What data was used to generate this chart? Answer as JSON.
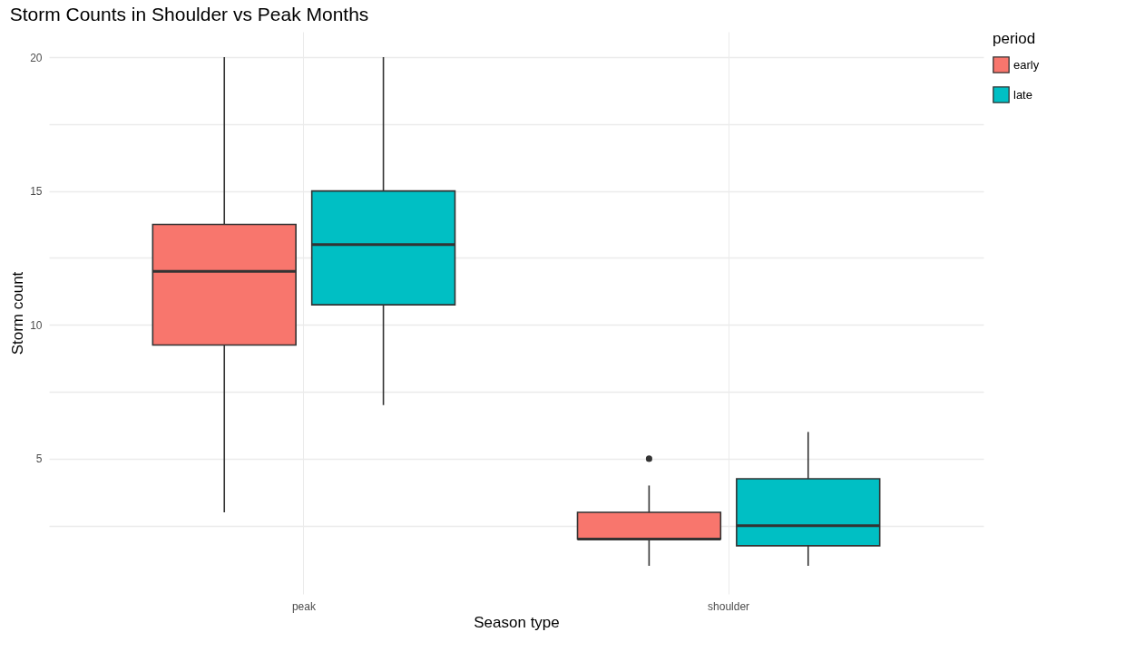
{
  "chart_data": {
    "type": "box",
    "title": "Storm Counts in Shoulder vs Peak Months",
    "xlabel": "Season type",
    "ylabel": "Storm count",
    "legend_title": "period",
    "legend": "right",
    "grid": true,
    "categories": [
      "peak",
      "shoulder"
    ],
    "series": [
      {
        "name": "early",
        "color": "#f8766d",
        "boxes": [
          {
            "low": 3,
            "q1": 9.25,
            "median": 12,
            "q3": 13.75,
            "high": 20
          },
          {
            "low": 1,
            "q1": 2,
            "median": 2,
            "q3": 3,
            "high": 4,
            "outliers": [
              5
            ]
          }
        ]
      },
      {
        "name": "late",
        "color": "#00bfc4",
        "boxes": [
          {
            "low": 7,
            "q1": 10.75,
            "median": 13,
            "q3": 15,
            "high": 20
          },
          {
            "low": 1,
            "q1": 1.75,
            "median": 2.5,
            "q3": 4.25,
            "high": 6
          }
        ]
      }
    ],
    "ylim": [
      -0.05,
      20.95
    ],
    "yticks": [
      {
        "value": 2.5,
        "label": null
      },
      5,
      {
        "value": 7.5,
        "label": null
      },
      10,
      {
        "value": 12.5,
        "label": null
      },
      15,
      {
        "value": 17.5,
        "label": null
      },
      20
    ]
  }
}
